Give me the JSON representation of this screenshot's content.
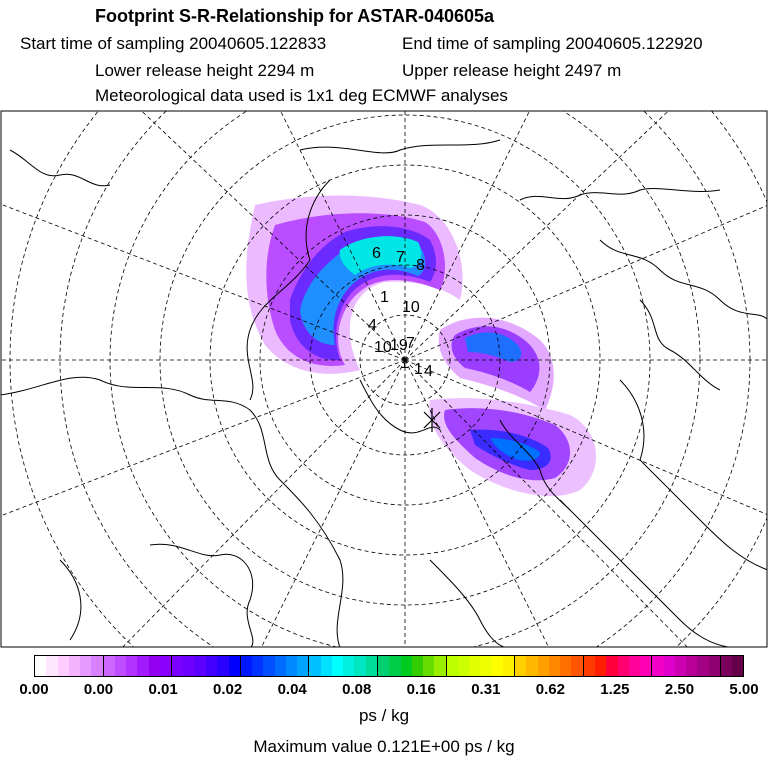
{
  "header": {
    "title": "Footprint S-R-Relationship for ASTAR-040605a",
    "start_time": "Start time of sampling 20040605.122833",
    "end_time": "End time of sampling 20040605.122920",
    "lower_height": "Lower release height 2294 m",
    "upper_height": "Upper release height 2497 m",
    "met_data": "Meteorological data used is 1x1 deg ECMWF analyses"
  },
  "map": {
    "projection": "polar stereographic, North Pole",
    "contour_labels": [
      "6",
      "7",
      "8",
      "1",
      "10",
      "4",
      "10",
      "19",
      "7",
      "1",
      "1",
      "4"
    ]
  },
  "colorbar": {
    "tick_labels": [
      "0.00",
      "0.00",
      "0.01",
      "0.02",
      "0.04",
      "0.08",
      "0.16",
      "0.31",
      "0.62",
      "1.25",
      "2.50",
      "5.00"
    ],
    "colors": [
      "#ffffff",
      "#ffe6ff",
      "#ffccff",
      "#f5b3ff",
      "#e699ff",
      "#d980ff",
      "#cc66ff",
      "#bf4dff",
      "#b233ff",
      "#a31aff",
      "#9400f0",
      "#8a00ff",
      "#7a00ff",
      "#6b00ff",
      "#5c00ff",
      "#4400ff",
      "#2a00ff",
      "#0000ff",
      "#0018ff",
      "#0033ff",
      "#0050ff",
      "#006bff",
      "#0088ff",
      "#00a3ff",
      "#00c0ff",
      "#00e0ff",
      "#00ffff",
      "#00f0e0",
      "#00e6c0",
      "#00dc9a",
      "#00d070",
      "#00cc4a",
      "#00cc20",
      "#33cc00",
      "#66dd00",
      "#99ee00",
      "#bbff00",
      "#ccff00",
      "#e0ff00",
      "#f0ff00",
      "#ffff00",
      "#fff000",
      "#ffd000",
      "#ffb800",
      "#ffa000",
      "#ff8800",
      "#ff7000",
      "#ff5500",
      "#ff3a00",
      "#ff1f00",
      "#ff003c",
      "#ff0070",
      "#ff0099",
      "#ff00b4",
      "#f200c8",
      "#e000cc",
      "#cc00b0",
      "#b80099",
      "#a30085",
      "#8f0070",
      "#7a005c",
      "#640048"
    ],
    "units": "ps / kg"
  },
  "max_value": "Maximum value  0.121E+00 ps / kg"
}
